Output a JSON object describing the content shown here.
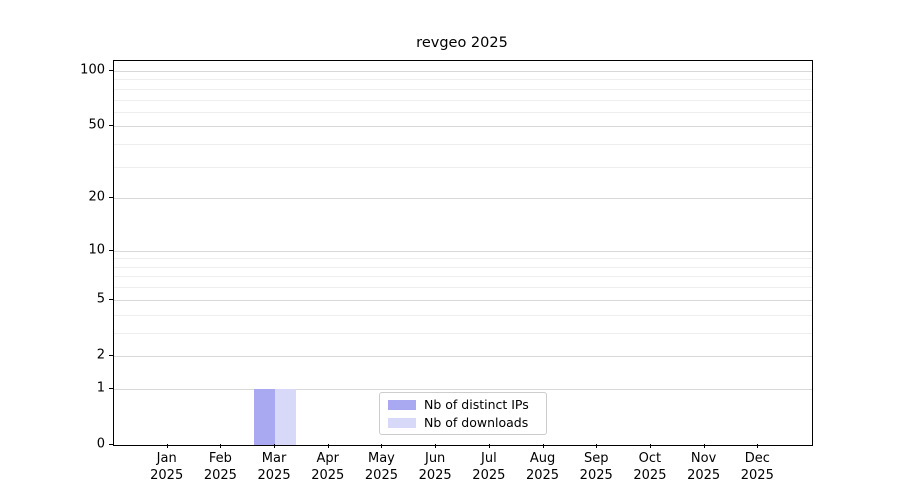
{
  "chart_data": {
    "type": "bar",
    "title": "revgeo 2025",
    "x_categories": [
      "Jan",
      "Feb",
      "Mar",
      "Apr",
      "May",
      "Jun",
      "Jul",
      "Aug",
      "Sep",
      "Oct",
      "Nov",
      "Dec"
    ],
    "x_year": "2025",
    "series": [
      {
        "name": "Nb of distinct IPs",
        "color": "#a9a9f2",
        "values": [
          0,
          0,
          1,
          0,
          0,
          0,
          0,
          0,
          0,
          0,
          0,
          0
        ]
      },
      {
        "name": "Nb of downloads",
        "color": "#d8d8f8",
        "values": [
          0,
          0,
          1,
          0,
          0,
          0,
          0,
          0,
          0,
          0,
          0,
          0
        ]
      }
    ],
    "y_axis": {
      "scale": "log1p",
      "ylim": [
        0,
        100
      ],
      "ticks": [
        0,
        1,
        2,
        5,
        10,
        20,
        50,
        100
      ],
      "minor_ticks": [
        3,
        4,
        6,
        7,
        8,
        9,
        30,
        40,
        60,
        70,
        80,
        90
      ],
      "grid": true
    },
    "legend": {
      "position": "lower center"
    }
  },
  "colors": {
    "major_grid": "#d8d8d8",
    "minor_grid": "#eeeeee",
    "axis": "#000000",
    "background": "#ffffff"
  }
}
